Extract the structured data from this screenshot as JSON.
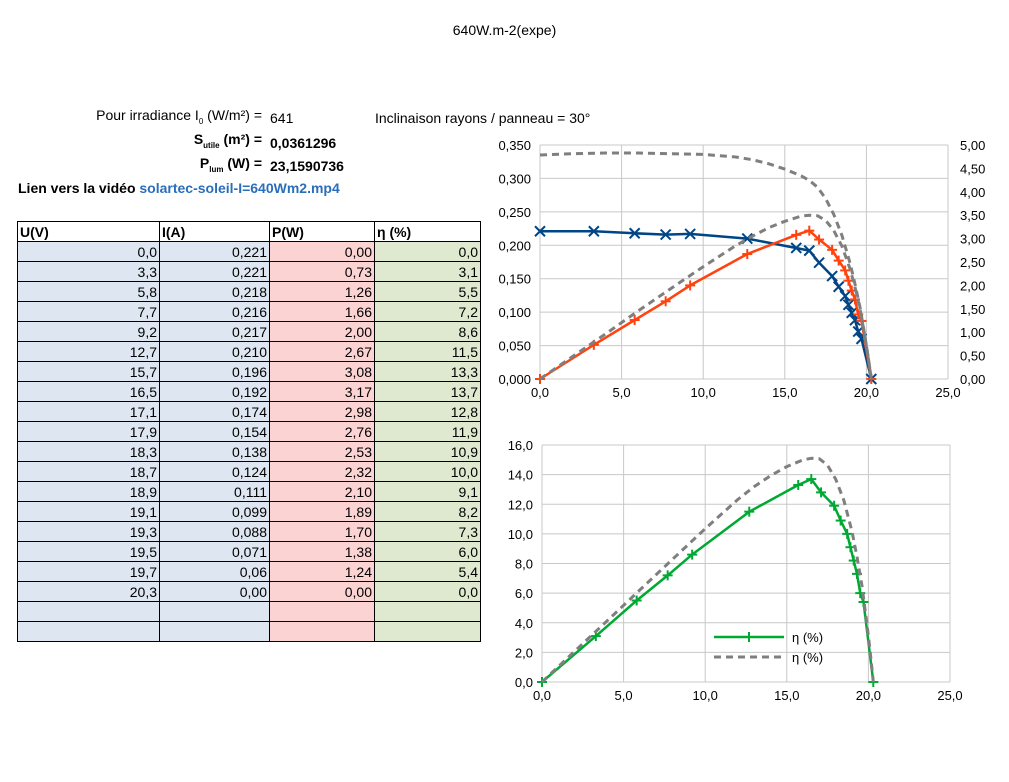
{
  "title": "640W.m-2(expe)",
  "params": {
    "irradiance_label_pre": "Pour irradiance I",
    "irradiance_sub": "0",
    "irradiance_label_post": " (W/m²) =",
    "irradiance_value": "641",
    "inclination": "Inclinaison rayons / panneau = 30°",
    "surface_label_pre": "S",
    "surface_sub": "utile",
    "surface_label_post": " (m²) =",
    "surface_value": "0,0361296",
    "plum_label_pre": "P",
    "plum_sub": "lum",
    "plum_label_post": " (W) =",
    "plum_value": "23,1590736",
    "video_label": "Lien vers la vidéo",
    "video_link": "solartec-soleil-I=640Wm2.mp4"
  },
  "table": {
    "headers": [
      "U(V)",
      "I(A)",
      "P(W)",
      "η (%)"
    ],
    "rows": [
      [
        "0,0",
        "0,221",
        "0,00",
        "0,0"
      ],
      [
        "3,3",
        "0,221",
        "0,73",
        "3,1"
      ],
      [
        "5,8",
        "0,218",
        "1,26",
        "5,5"
      ],
      [
        "7,7",
        "0,216",
        "1,66",
        "7,2"
      ],
      [
        "9,2",
        "0,217",
        "2,00",
        "8,6"
      ],
      [
        "12,7",
        "0,210",
        "2,67",
        "11,5"
      ],
      [
        "15,7",
        "0,196",
        "3,08",
        "13,3"
      ],
      [
        "16,5",
        "0,192",
        "3,17",
        "13,7"
      ],
      [
        "17,1",
        "0,174",
        "2,98",
        "12,8"
      ],
      [
        "17,9",
        "0,154",
        "2,76",
        "11,9"
      ],
      [
        "18,3",
        "0,138",
        "2,53",
        "10,9"
      ],
      [
        "18,7",
        "0,124",
        "2,32",
        "10,0"
      ],
      [
        "18,9",
        "0,111",
        "2,10",
        "9,1"
      ],
      [
        "19,1",
        "0,099",
        "1,89",
        "8,2"
      ],
      [
        "19,3",
        "0,088",
        "1,70",
        "7,3"
      ],
      [
        "19,5",
        "0,071",
        "1,38",
        "6,0"
      ],
      [
        "19,7",
        "0,06",
        "1,24",
        "5,4"
      ],
      [
        "20,3",
        "0,00",
        "0,00",
        "0,0"
      ],
      [
        "",
        "",
        "",
        ""
      ],
      [
        "",
        "",
        "",
        ""
      ]
    ]
  },
  "chart_data": [
    {
      "type": "line",
      "xlim": [
        0,
        25
      ],
      "ylim_left": [
        0,
        0.35
      ],
      "ylim_right": [
        0,
        5
      ],
      "x_ticks": [
        "0,0",
        "5,0",
        "10,0",
        "15,0",
        "20,0",
        "25,0"
      ],
      "y_left_ticks": [
        "0,000",
        "0,050",
        "0,100",
        "0,150",
        "0,200",
        "0,250",
        "0,300",
        "0,350"
      ],
      "y_right_ticks": [
        "0,00",
        "0,50",
        "1,00",
        "1,50",
        "2,00",
        "2,50",
        "3,00",
        "3,50",
        "4,00",
        "4,50",
        "5,00"
      ],
      "grid": true,
      "series": [
        {
          "axis": "left",
          "color": "#004586",
          "marker": "x",
          "x": [
            0.0,
            3.3,
            5.8,
            7.7,
            9.2,
            12.7,
            15.7,
            16.5,
            17.1,
            17.9,
            18.3,
            18.7,
            18.9,
            19.1,
            19.3,
            19.5,
            19.7,
            20.3
          ],
          "y": [
            0.221,
            0.221,
            0.218,
            0.216,
            0.217,
            0.21,
            0.196,
            0.192,
            0.174,
            0.154,
            0.138,
            0.124,
            0.111,
            0.099,
            0.088,
            0.071,
            0.06,
            0.0
          ]
        },
        {
          "axis": "right",
          "color": "#ff420e",
          "marker": "+",
          "x": [
            0.0,
            3.3,
            5.8,
            7.7,
            9.2,
            12.7,
            15.7,
            16.5,
            17.1,
            17.9,
            18.3,
            18.7,
            18.9,
            19.1,
            19.3,
            19.5,
            19.7,
            20.3
          ],
          "y": [
            0.0,
            0.73,
            1.26,
            1.66,
            2.0,
            2.67,
            3.08,
            3.17,
            2.98,
            2.76,
            2.53,
            2.32,
            2.1,
            1.89,
            1.7,
            1.38,
            1.24,
            0.0
          ]
        },
        {
          "axis": "left",
          "color": "#7f7f7f",
          "dashed": true,
          "x": [
            0,
            2,
            4,
            6,
            8,
            10,
            12,
            13,
            14,
            15,
            16,
            16.5,
            17,
            17.5,
            18,
            18.5,
            19,
            19.3,
            19.6,
            19.9,
            20.1,
            20.3
          ],
          "y": [
            0.335,
            0.337,
            0.338,
            0.338,
            0.337,
            0.336,
            0.332,
            0.328,
            0.322,
            0.314,
            0.304,
            0.297,
            0.287,
            0.27,
            0.246,
            0.215,
            0.173,
            0.142,
            0.108,
            0.065,
            0.035,
            0.0
          ]
        },
        {
          "axis": "right",
          "color": "#7f7f7f",
          "dashed": true,
          "x": [
            0,
            2,
            4,
            6,
            8,
            10,
            12,
            13,
            14,
            15,
            16,
            16.5,
            17,
            17.5,
            18,
            18.5,
            19,
            19.3,
            19.6,
            19.9,
            20.1,
            20.3
          ],
          "y": [
            0,
            0.48,
            0.96,
            1.45,
            1.93,
            2.4,
            2.85,
            3.05,
            3.23,
            3.37,
            3.48,
            3.5,
            3.49,
            3.39,
            3.17,
            2.84,
            2.35,
            1.96,
            1.51,
            0.92,
            0.5,
            0.0
          ]
        }
      ]
    },
    {
      "type": "line",
      "xlim": [
        0,
        25
      ],
      "ylim": [
        0,
        16
      ],
      "x_ticks": [
        "0,0",
        "5,0",
        "10,0",
        "15,0",
        "20,0",
        "25,0"
      ],
      "y_ticks": [
        "0,0",
        "2,0",
        "4,0",
        "6,0",
        "8,0",
        "10,0",
        "12,0",
        "14,0",
        "16,0"
      ],
      "grid": true,
      "legend_position": "bottom-right",
      "series": [
        {
          "name": "η (%)",
          "color": "#00a933",
          "marker": "+",
          "x": [
            0.0,
            3.3,
            5.8,
            7.7,
            9.2,
            12.7,
            15.7,
            16.5,
            17.1,
            17.9,
            18.3,
            18.7,
            18.9,
            19.1,
            19.3,
            19.5,
            19.7,
            20.3
          ],
          "y": [
            0.0,
            3.1,
            5.5,
            7.2,
            8.6,
            11.5,
            13.3,
            13.7,
            12.8,
            11.9,
            10.9,
            10.0,
            9.1,
            8.2,
            7.3,
            6.0,
            5.4,
            0.0
          ]
        },
        {
          "name": "η (%)",
          "color": "#7f7f7f",
          "dashed": true,
          "x": [
            0,
            2,
            4,
            6,
            8,
            10,
            12,
            13,
            14,
            15,
            16,
            16.5,
            17,
            17.5,
            18,
            18.5,
            19,
            19.3,
            19.6,
            19.9,
            20.1,
            20.3
          ],
          "y": [
            0,
            2.07,
            4.14,
            6.22,
            8.29,
            10.35,
            12.32,
            13.19,
            13.93,
            14.54,
            15.0,
            15.1,
            15.07,
            14.63,
            13.68,
            12.25,
            10.13,
            8.45,
            6.52,
            3.98,
            2.17,
            0.0
          ]
        }
      ]
    }
  ]
}
